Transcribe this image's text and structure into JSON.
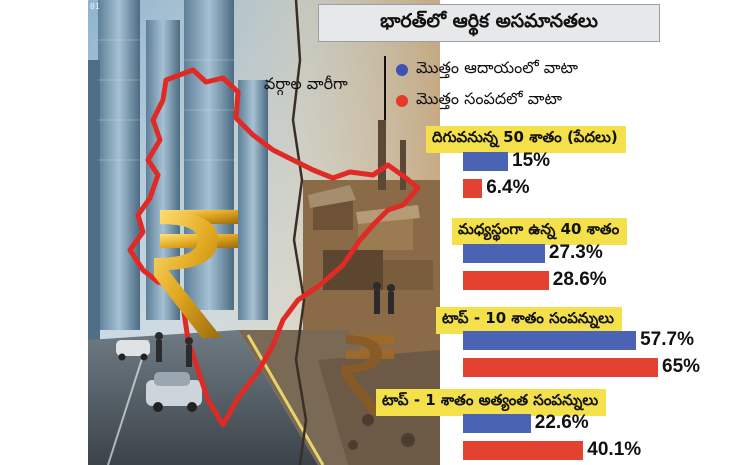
{
  "title": "భారత్‌లో ఆర్థిక అసమానతలు",
  "indicator": "01",
  "legend": {
    "caption": "వర్గాల వారీగా",
    "items": [
      {
        "label": "మొత్తం ఆదాయంలో వాటా",
        "color": "#3f51b5"
      },
      {
        "label": "మొత్తం సంపదలో వాటా",
        "color": "#e53a28"
      }
    ]
  },
  "chart_data": {
    "type": "bar",
    "orientation": "horizontal",
    "title": "భారత్‌లో ఆర్థిక అసమానతలు",
    "categories": [
      "దిగువనున్న 50 శాతం (పేదలు)",
      "మధ్యస్థంగా ఉన్న 40 శాతం",
      "టాప్ - 10 శాతం సంపన్నులు",
      "టాప్ - 1 శాతం అత్యంత సంపన్నులు"
    ],
    "series": [
      {
        "name": "మొత్తం ఆదాయంలో వాటా",
        "values": [
          15,
          27.3,
          57.7,
          22.6
        ],
        "labels": [
          "15%",
          "27.3%",
          "57.7%",
          "22.6%"
        ]
      },
      {
        "name": "మొత్తం సంపదలో వాటా",
        "values": [
          6.4,
          28.6,
          65,
          40.1
        ],
        "labels": [
          "6.4%",
          "28.6%",
          "65%",
          "40.1%"
        ]
      }
    ],
    "unit": "%",
    "xlim": [
      0,
      65
    ],
    "legend_position": "top"
  }
}
